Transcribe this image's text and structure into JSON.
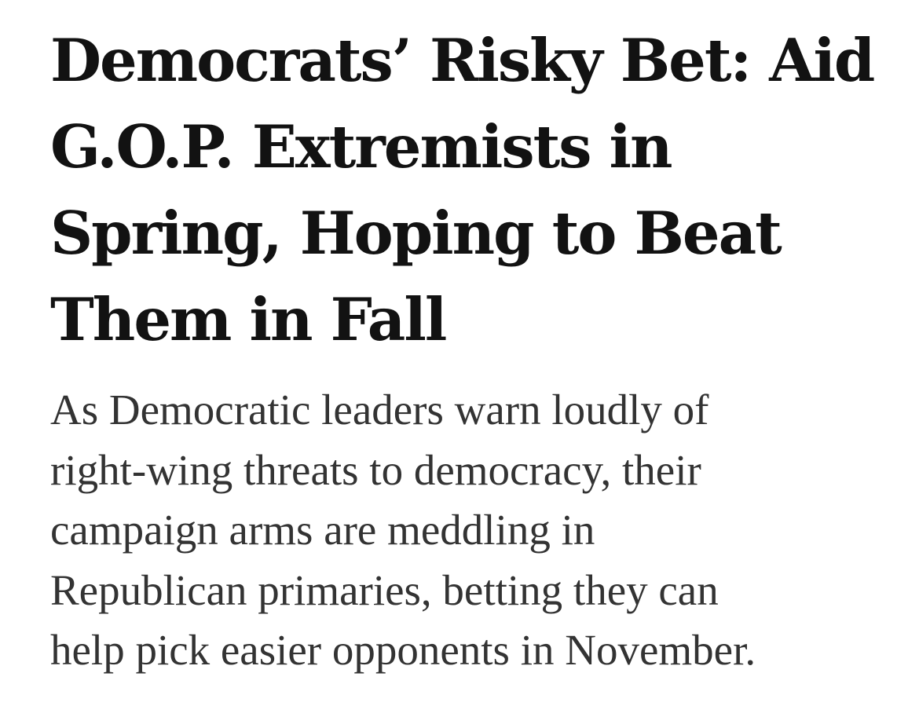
{
  "article": {
    "headline_lines": [
      "Democrats’ Risky Bet: Aid",
      "G.O.P. Extremists in",
      "Spring, Hoping to Beat",
      "Them in Fall"
    ],
    "summary_lines": [
      "As Democratic leaders warn loudly of",
      "right-wing threats to democracy, their",
      "campaign arms are meddling in",
      "Republican primaries, betting they can",
      "help pick easier opponents in November."
    ]
  }
}
